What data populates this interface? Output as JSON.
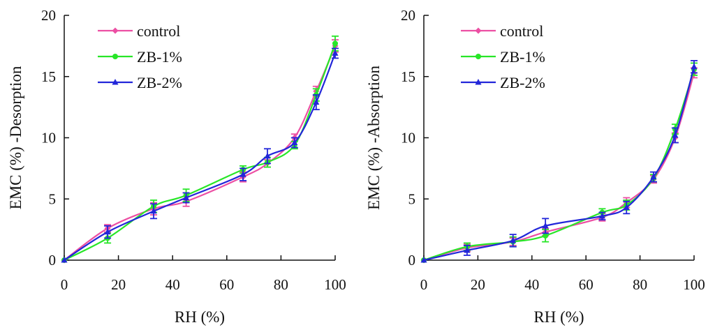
{
  "colors": {
    "control": "#ec4fa3",
    "zb1": "#28e628",
    "zb2": "#2226d9",
    "axis": "#111111"
  },
  "chart_data": [
    {
      "type": "line",
      "xlabel": "RH (%)",
      "ylabel": "EMC (%) -Desorption",
      "xlim": [
        0,
        100
      ],
      "ylim": [
        0,
        20
      ],
      "xticks": [
        "0",
        "20",
        "40",
        "60",
        "80",
        "100"
      ],
      "yticks": [
        "0",
        "5",
        "10",
        "15",
        "20"
      ],
      "legend_position": "top-left",
      "series": [
        {
          "name": "control",
          "marker": "diamond",
          "x": [
            0,
            16,
            33,
            45,
            66,
            75,
            85,
            93,
            100
          ],
          "y": [
            0,
            2.6,
            4.2,
            4.8,
            6.8,
            7.9,
            10.0,
            13.8,
            17.5
          ],
          "err": [
            0,
            0.3,
            0.5,
            0.4,
            0.4,
            0.3,
            0.3,
            0.4,
            0.5
          ]
        },
        {
          "name": "ZB-1%",
          "marker": "circle",
          "x": [
            0,
            16,
            33,
            45,
            66,
            75,
            85,
            93,
            100
          ],
          "y": [
            0,
            1.8,
            4.4,
            5.3,
            7.4,
            8.0,
            9.4,
            13.5,
            17.7
          ],
          "err": [
            0,
            0.4,
            0.5,
            0.5,
            0.3,
            0.4,
            0.3,
            0.5,
            0.6
          ]
        },
        {
          "name": "ZB-2%",
          "marker": "triangle",
          "x": [
            0,
            16,
            33,
            45,
            66,
            75,
            85,
            93,
            100
          ],
          "y": [
            0,
            2.3,
            4.0,
            5.1,
            7.0,
            8.5,
            9.6,
            12.9,
            16.9
          ],
          "err": [
            0,
            0.5,
            0.6,
            0.4,
            0.5,
            0.6,
            0.4,
            0.6,
            0.4
          ]
        }
      ]
    },
    {
      "type": "line",
      "xlabel": "RH (%)",
      "ylabel": "EMC (%) -Absorption",
      "xlim": [
        0,
        100
      ],
      "ylim": [
        0,
        20
      ],
      "xticks": [
        "0",
        "20",
        "40",
        "60",
        "80",
        "100"
      ],
      "yticks": [
        "0",
        "5",
        "10",
        "15",
        "20"
      ],
      "legend_position": "top-left",
      "series": [
        {
          "name": "control",
          "marker": "diamond",
          "x": [
            0,
            16,
            33,
            45,
            66,
            75,
            85,
            93,
            100
          ],
          "y": [
            0,
            1.0,
            1.5,
            2.3,
            3.5,
            4.7,
            6.6,
            10.0,
            15.3
          ],
          "err": [
            0,
            0.3,
            0.3,
            0.3,
            0.3,
            0.4,
            0.3,
            0.4,
            0.4
          ]
        },
        {
          "name": "ZB-1%",
          "marker": "circle",
          "x": [
            0,
            16,
            33,
            45,
            66,
            75,
            85,
            93,
            100
          ],
          "y": [
            0,
            1.1,
            1.5,
            2.0,
            3.9,
            4.5,
            6.7,
            10.7,
            15.6
          ],
          "err": [
            0,
            0.3,
            0.4,
            0.5,
            0.3,
            0.4,
            0.3,
            0.4,
            0.5
          ]
        },
        {
          "name": "ZB-2%",
          "marker": "triangle",
          "x": [
            0,
            16,
            33,
            45,
            66,
            75,
            85,
            93,
            100
          ],
          "y": [
            0,
            0.8,
            1.6,
            2.8,
            3.6,
            4.3,
            6.8,
            10.2,
            15.8
          ],
          "err": [
            0,
            0.4,
            0.5,
            0.6,
            0.3,
            0.5,
            0.4,
            0.6,
            0.5
          ]
        }
      ]
    }
  ]
}
